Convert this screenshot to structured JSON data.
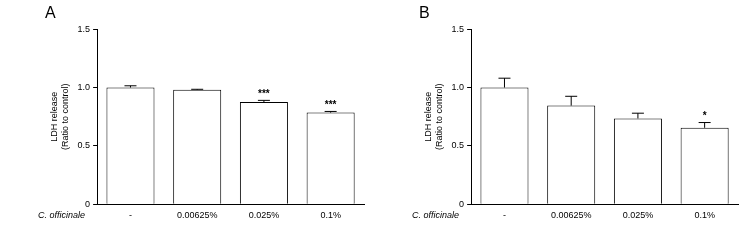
{
  "chart_data": [
    {
      "type": "bar",
      "title": "A",
      "ylabel": [
        "LDH release",
        "(Ratio to control)"
      ],
      "xlabel": "C. officinale",
      "categories": [
        "-",
        "0.00625%",
        "0.025%",
        "0.1%"
      ],
      "values": [
        1.0,
        0.98,
        0.875,
        0.785
      ],
      "errors": [
        0.015,
        0.005,
        0.015,
        0.01
      ],
      "color": "#ffffff",
      "ylim": [
        0,
        1.5
      ],
      "yticks": [
        0,
        0.5,
        {
          "value": 1,
          "label": "1.0"
        },
        1.5
      ],
      "grid": false,
      "annotations": [
        {
          "category": "0.025%",
          "text": "***"
        },
        {
          "category": "0.1%",
          "text": "***"
        }
      ]
    },
    {
      "type": "bar",
      "title": "B",
      "ylabel": [
        "LDH release",
        "(Ratio to control)"
      ],
      "xlabel": "C. officinale",
      "categories": [
        "-",
        "0.00625%",
        "0.025%",
        "0.1%"
      ],
      "values": [
        1.0,
        0.845,
        0.735,
        0.655
      ],
      "errors": [
        0.08,
        0.08,
        0.045,
        0.045
      ],
      "color": "#ffffff",
      "ylim": [
        0,
        1.5
      ],
      "yticks": [
        0,
        0.5,
        {
          "value": 1,
          "label": "1.0"
        },
        1.5
      ],
      "grid": false,
      "annotations": [
        {
          "category": "0.1%",
          "text": "*"
        }
      ]
    }
  ]
}
